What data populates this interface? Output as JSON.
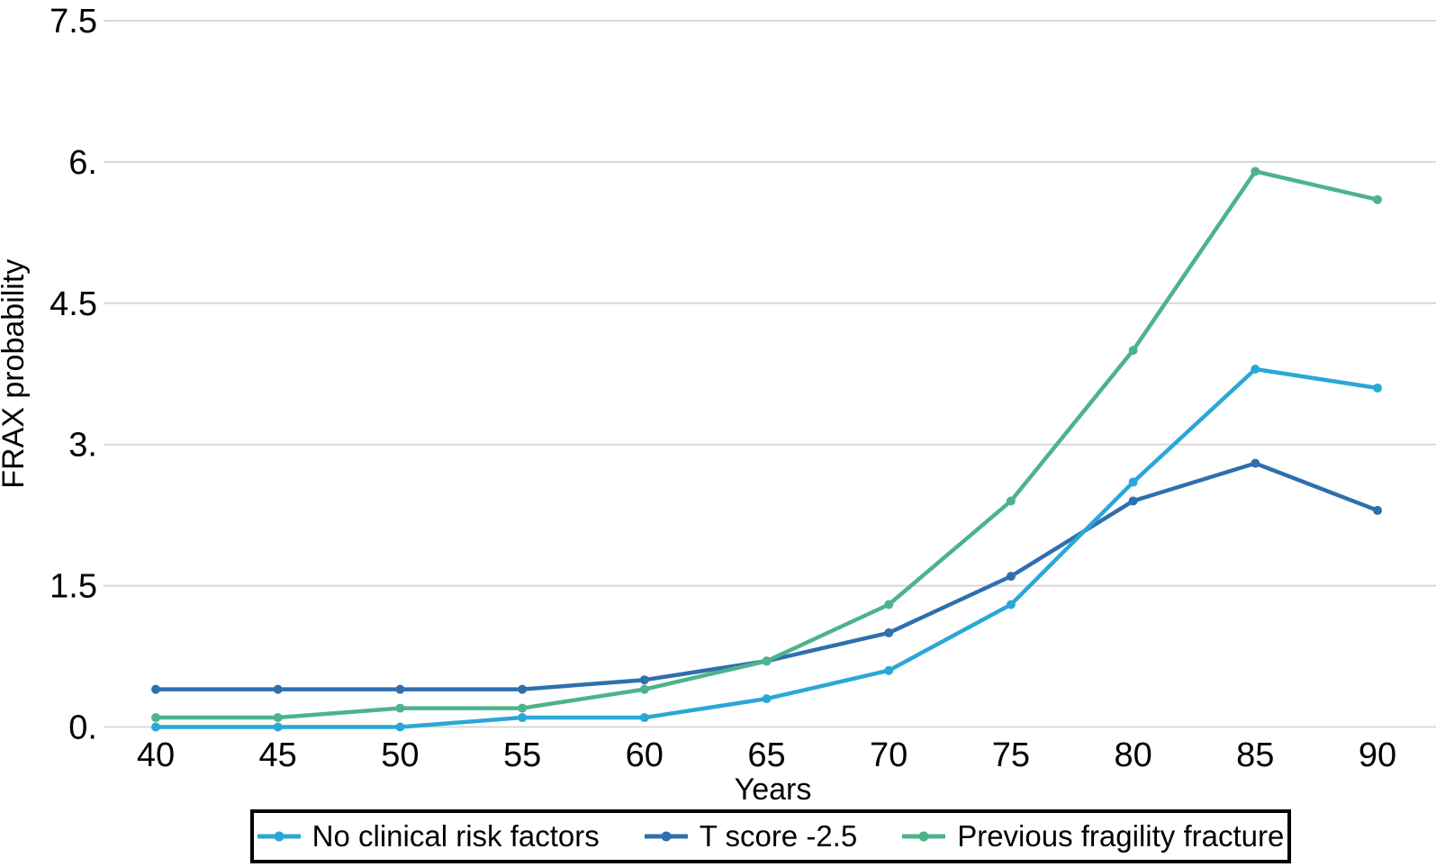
{
  "figure": {
    "background": "#ffffff",
    "text_color": "#000000",
    "gridline_color": "#d8d8d8"
  },
  "chart_data": {
    "type": "line",
    "title": "",
    "xlabel": "Years",
    "ylabel": "FRAX probability",
    "x": [
      40,
      45,
      50,
      55,
      60,
      65,
      70,
      75,
      80,
      85,
      90
    ],
    "x_tick_labels": [
      "40",
      "45",
      "50",
      "55",
      "60",
      "65",
      "70",
      "75",
      "80",
      "85",
      "90"
    ],
    "xlim": [
      40,
      90
    ],
    "ylim": [
      0,
      7.5
    ],
    "y_ticks": [
      {
        "value": 0,
        "label": "0."
      },
      {
        "value": 1.5,
        "label": "1.5"
      },
      {
        "value": 3,
        "label": "3."
      },
      {
        "value": 4.5,
        "label": "4.5"
      },
      {
        "value": 6,
        "label": "6."
      },
      {
        "value": 7.5,
        "label": "7.5"
      }
    ],
    "grid": "horizontal",
    "legend_position": "bottom",
    "series": [
      {
        "name": "No clinical risk factors",
        "color": "#2aa7d7",
        "values": [
          0,
          0,
          0,
          0.1,
          0.1,
          0.3,
          0.6,
          1.3,
          2.6,
          3.8,
          3.6
        ]
      },
      {
        "name": "T score -2.5",
        "color": "#2f6fae",
        "values": [
          0.4,
          0.4,
          0.4,
          0.4,
          0.5,
          0.7,
          1.0,
          1.6,
          2.4,
          2.8,
          2.3
        ]
      },
      {
        "name": "Previous fragility fracture",
        "color": "#4db38a",
        "values": [
          0.1,
          0.1,
          0.2,
          0.2,
          0.4,
          0.7,
          1.3,
          2.4,
          4.0,
          5.9,
          5.6
        ]
      }
    ]
  }
}
